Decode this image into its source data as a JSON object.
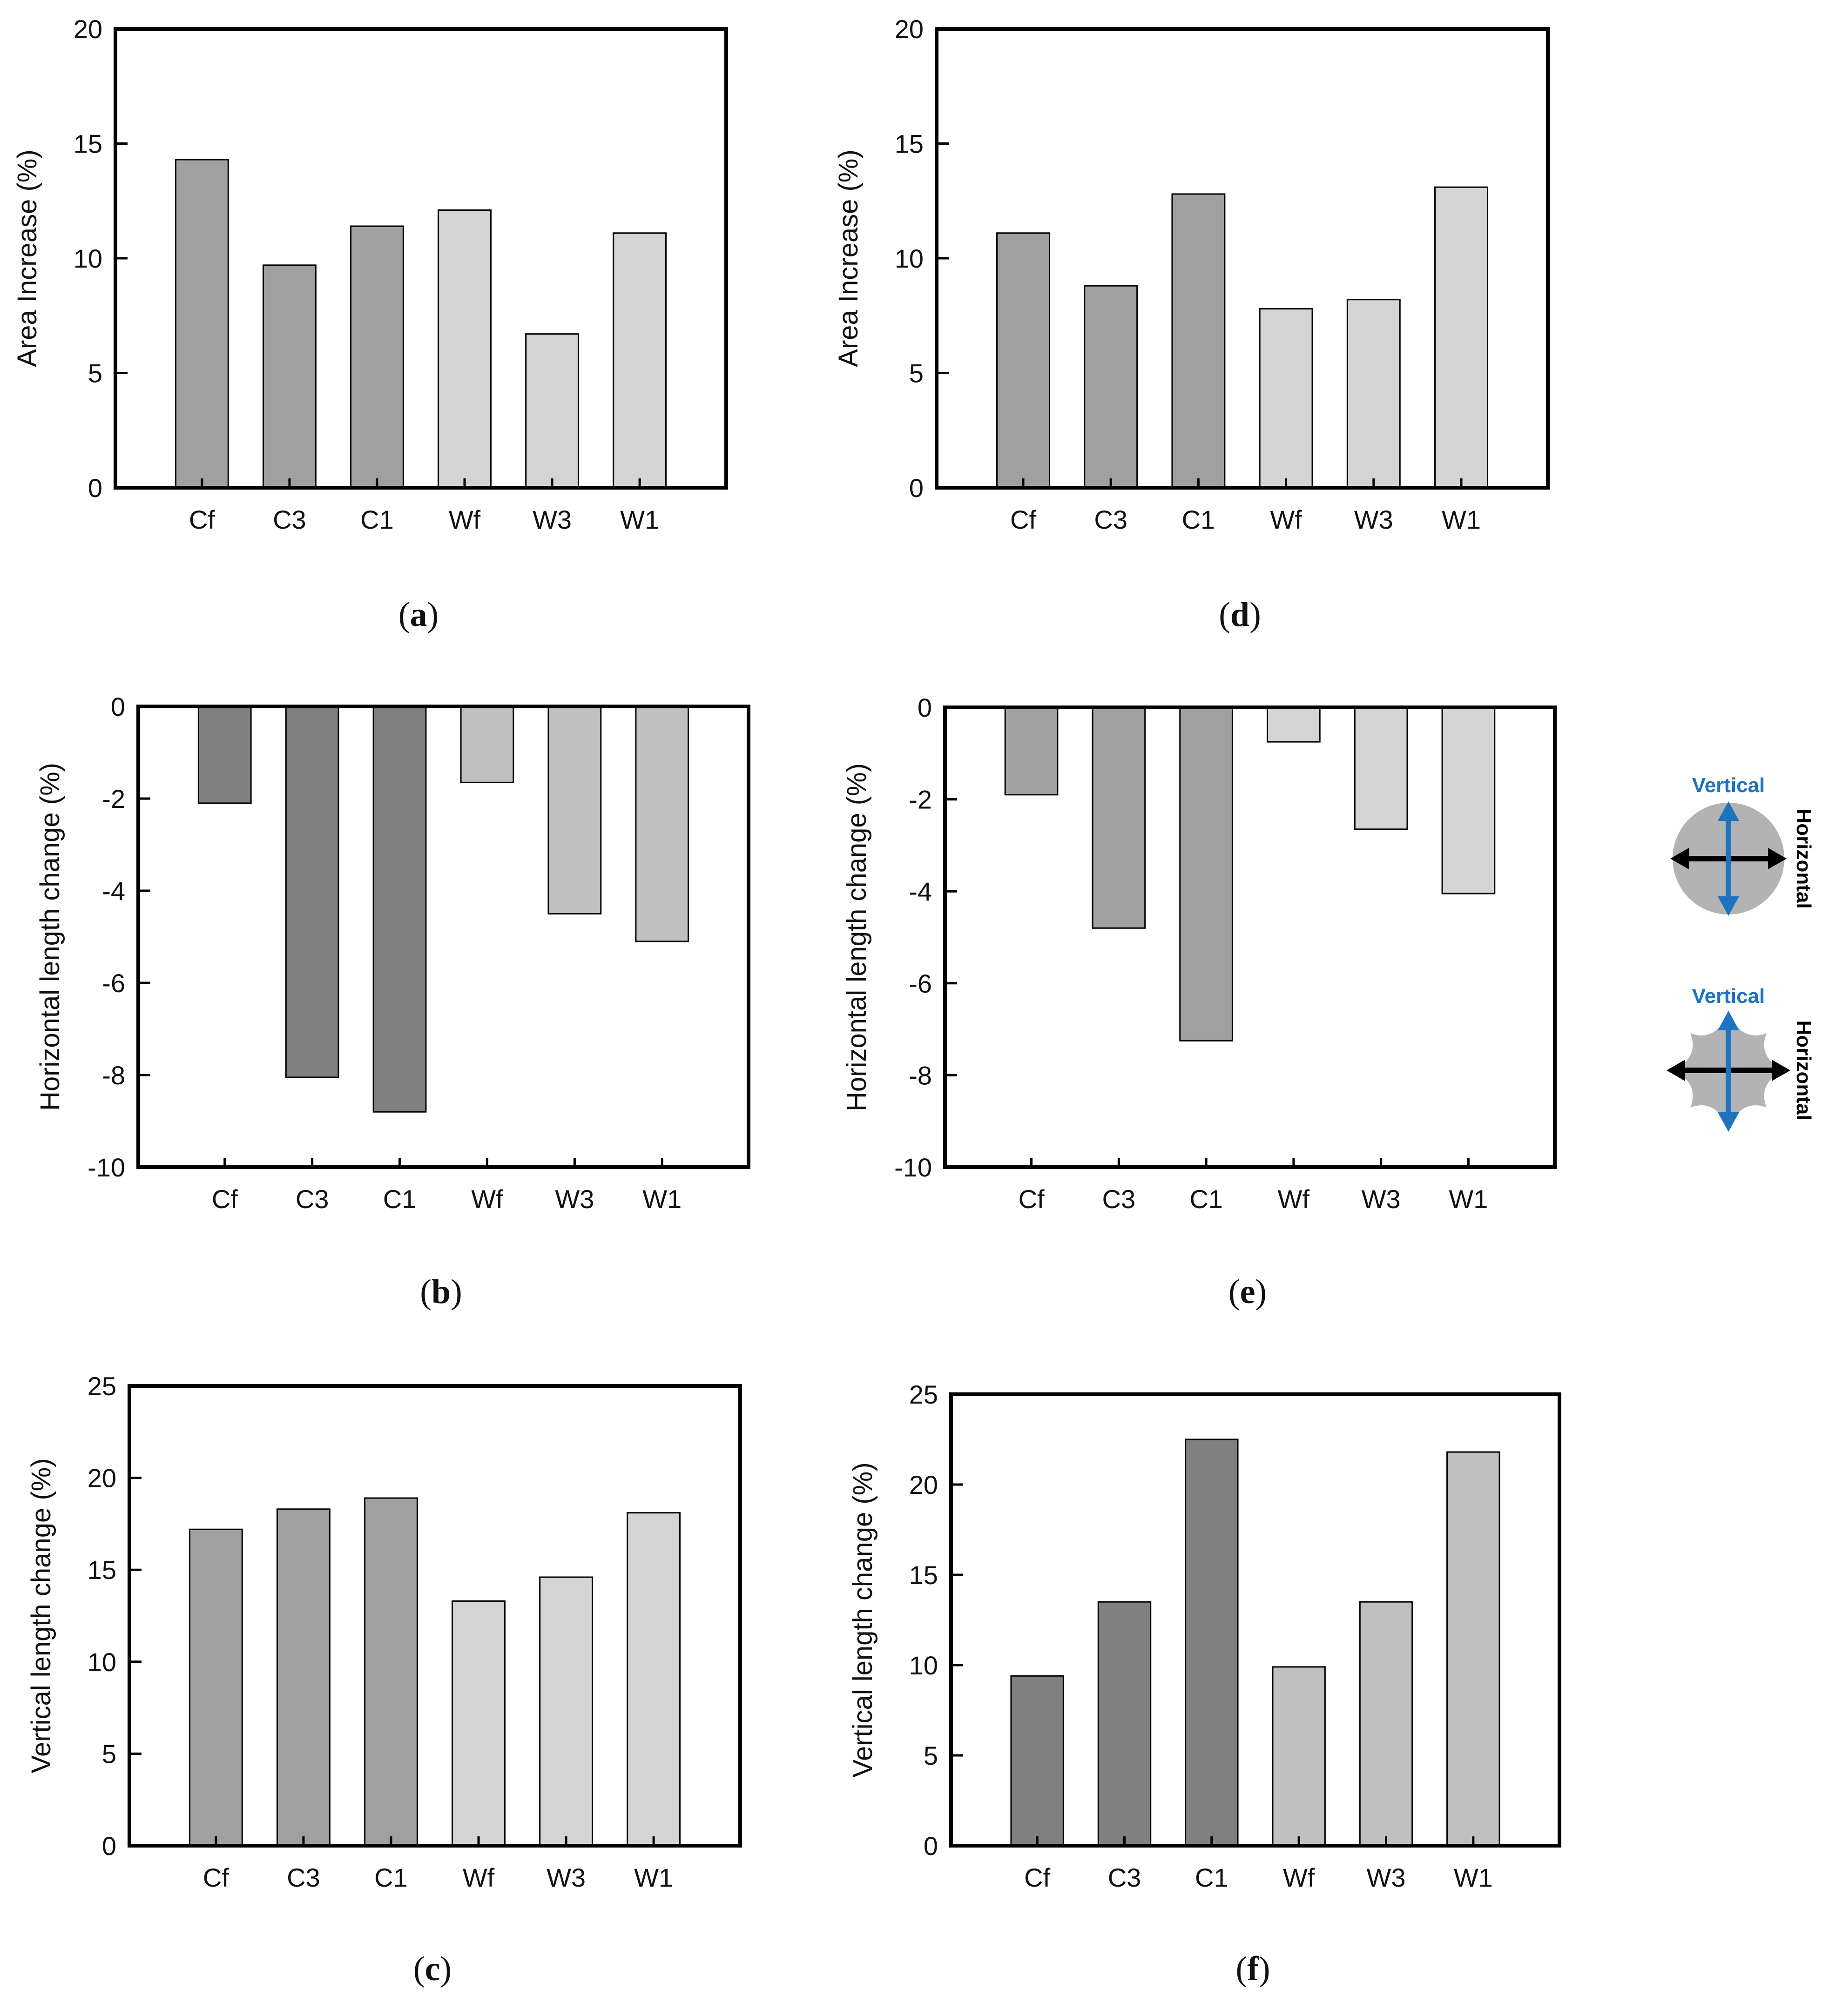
{
  "chart_data": [
    {
      "id": "a",
      "type": "bar",
      "caption_letter": "a",
      "categories": [
        "Cf",
        "C3",
        "C1",
        "Wf",
        "W3",
        "W1"
      ],
      "values": [
        14.3,
        9.7,
        11.4,
        12.1,
        6.7,
        11.1
      ],
      "bar_colors": [
        "#a0a0a0",
        "#a0a0a0",
        "#a0a0a0",
        "#d4d4d4",
        "#d4d4d4",
        "#d4d4d4"
      ],
      "ylabel": "Area Increase (%)",
      "ylim": [
        0,
        20
      ],
      "yticks": [
        0,
        5,
        10,
        15,
        20
      ]
    },
    {
      "id": "b",
      "type": "bar",
      "caption_letter": "b",
      "categories": [
        "Cf",
        "C3",
        "C1",
        "Wf",
        "W3",
        "W1"
      ],
      "values": [
        -2.1,
        -8.05,
        -8.8,
        -1.65,
        -4.5,
        -5.1
      ],
      "bar_colors": [
        "#808080",
        "#808080",
        "#808080",
        "#c0c0c0",
        "#c0c0c0",
        "#c0c0c0"
      ],
      "ylabel": "Horizontal length change (%)",
      "ylim": [
        -10,
        0
      ],
      "yticks": [
        0,
        -2,
        -4,
        -6,
        -8,
        -10
      ]
    },
    {
      "id": "c",
      "type": "bar",
      "caption_letter": "c",
      "categories": [
        "Cf",
        "C3",
        "C1",
        "Wf",
        "W3",
        "W1"
      ],
      "values": [
        17.2,
        18.3,
        18.9,
        13.3,
        14.6,
        18.1
      ],
      "bar_colors": [
        "#a0a0a0",
        "#a0a0a0",
        "#a0a0a0",
        "#d4d4d4",
        "#d4d4d4",
        "#d4d4d4"
      ],
      "ylabel": "Vertical length change (%)",
      "ylim": [
        0,
        25
      ],
      "yticks": [
        0,
        5,
        10,
        15,
        20,
        25
      ]
    },
    {
      "id": "d",
      "type": "bar",
      "caption_letter": "d",
      "categories": [
        "Cf",
        "C3",
        "C1",
        "Wf",
        "W3",
        "W1"
      ],
      "values": [
        11.1,
        8.8,
        12.8,
        7.8,
        8.2,
        13.1
      ],
      "bar_colors": [
        "#a0a0a0",
        "#a0a0a0",
        "#a0a0a0",
        "#d4d4d4",
        "#d4d4d4",
        "#d4d4d4"
      ],
      "ylabel": "Area Increase (%)",
      "ylim": [
        0,
        20
      ],
      "yticks": [
        0,
        5,
        10,
        15,
        20
      ]
    },
    {
      "id": "e",
      "type": "bar",
      "caption_letter": "e",
      "categories": [
        "Cf",
        "C3",
        "C1",
        "Wf",
        "W3",
        "W1"
      ],
      "values": [
        -1.9,
        -4.8,
        -7.25,
        -0.75,
        -2.65,
        -4.05
      ],
      "bar_colors": [
        "#a0a0a0",
        "#a0a0a0",
        "#a0a0a0",
        "#d4d4d4",
        "#d4d4d4",
        "#d4d4d4"
      ],
      "ylabel": "Horizontal length change (%)",
      "ylim": [
        -10,
        0
      ],
      "yticks": [
        0,
        -2,
        -4,
        -6,
        -8,
        -10
      ]
    },
    {
      "id": "f",
      "type": "bar",
      "caption_letter": "f",
      "categories": [
        "Cf",
        "C3",
        "C1",
        "Wf",
        "W3",
        "W1"
      ],
      "values": [
        9.4,
        13.5,
        22.5,
        9.9,
        13.5,
        21.8
      ],
      "bar_colors": [
        "#808080",
        "#808080",
        "#808080",
        "#c0c0c0",
        "#c0c0c0",
        "#c0c0c0"
      ],
      "ylabel": "Vertical length change (%)",
      "ylim": [
        0,
        25
      ],
      "yticks": [
        0,
        5,
        10,
        15,
        20,
        25
      ]
    }
  ],
  "legend": {
    "vertical_label": "Vertical",
    "horizontal_label": "Horizontal",
    "vertical_color": "#1e73be",
    "horizontal_color": "#000000",
    "shape_fill": "#b3b3b3"
  }
}
